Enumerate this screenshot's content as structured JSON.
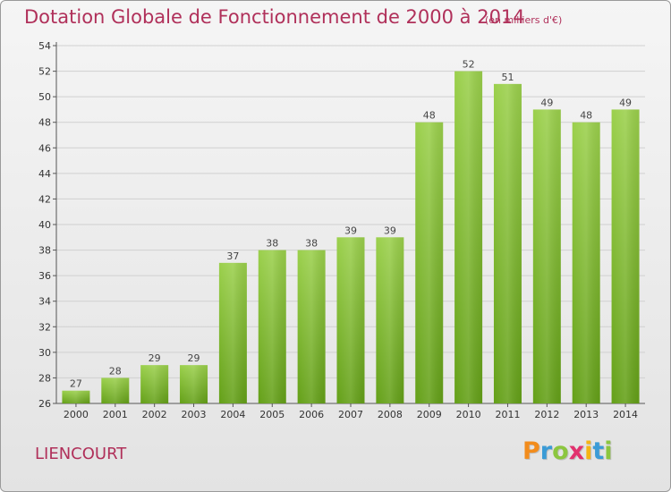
{
  "title": "Dotation Globale de Fonctionnement de 2000 à 2014",
  "subtitle": "(en milliers d'€)",
  "commune": "LIENCOURT",
  "logo": {
    "text": "Proxiti",
    "letters": [
      {
        "char": "P",
        "color": "#f28c1c"
      },
      {
        "char": "r",
        "color": "#3b9bd6"
      },
      {
        "char": "o",
        "color": "#8cc63f"
      },
      {
        "char": "x",
        "color": "#e2316e"
      },
      {
        "char": "i",
        "color": "#f5b514"
      },
      {
        "char": "t",
        "color": "#3b9bd6"
      },
      {
        "char": "i",
        "color": "#8cc63f"
      }
    ]
  },
  "colors": {
    "title": "#b0305a",
    "bar_light": "#9bd04c",
    "bar_dark": "#64a018",
    "grid": "#d0d0d0"
  },
  "chart_data": {
    "type": "bar",
    "title": "Dotation Globale de Fonctionnement de 2000 à 2014",
    "subtitle": "(en milliers d'€)",
    "categories": [
      "2000",
      "2001",
      "2002",
      "2003",
      "2004",
      "2005",
      "2006",
      "2007",
      "2008",
      "2009",
      "2010",
      "2011",
      "2012",
      "2013",
      "2014"
    ],
    "values": [
      27,
      28,
      29,
      29,
      37,
      38,
      38,
      39,
      39,
      48,
      52,
      51,
      49,
      48,
      49
    ],
    "ylim": [
      26,
      54
    ],
    "yticks": [
      26,
      28,
      30,
      32,
      34,
      36,
      38,
      40,
      42,
      44,
      46,
      48,
      50,
      52,
      54
    ],
    "grid": true,
    "data_labels": true
  }
}
